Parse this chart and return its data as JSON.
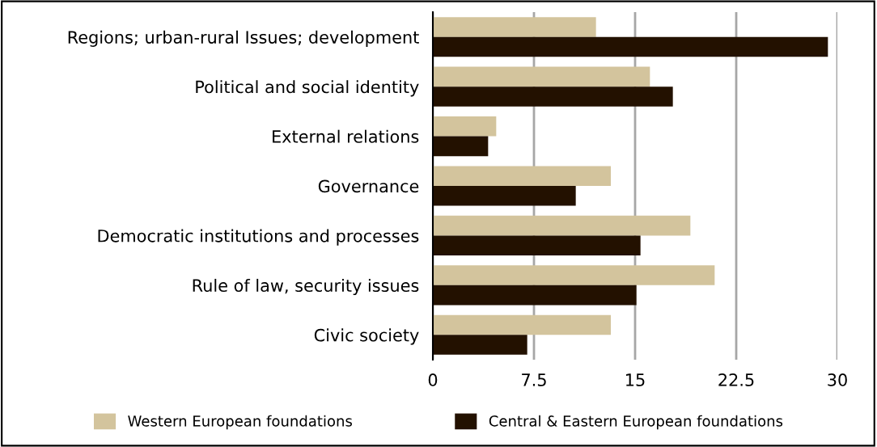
{
  "chart_data": {
    "type": "bar",
    "orientation": "horizontal",
    "categories": [
      "Regions; urban-rural Issues; development",
      "Political and social identity",
      "External relations",
      "Governance",
      "Democratic institutions and processes",
      "Rule of law, security issues",
      "Civic society"
    ],
    "series": [
      {
        "name": "Western European foundations",
        "color": "#d3c49d",
        "values": [
          12.1,
          16.1,
          4.7,
          13.2,
          19.1,
          20.9,
          13.2
        ]
      },
      {
        "name": "Central & Eastern European foundations",
        "color": "#231100",
        "values": [
          29.3,
          17.8,
          4.1,
          10.6,
          15.4,
          15.1,
          7.0
        ]
      }
    ],
    "xlim": [
      0,
      30
    ],
    "xticks": [
      0,
      7.5,
      15,
      22.5,
      30
    ],
    "grid": "x",
    "legend": "bottom"
  }
}
